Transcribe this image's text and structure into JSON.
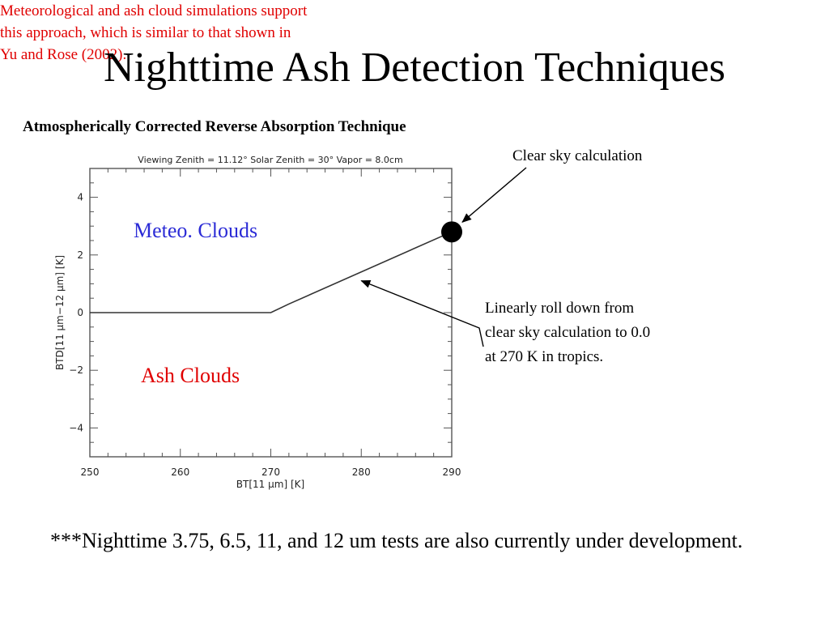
{
  "slide": {
    "title": "Nighttime Ash Detection Techniques",
    "chart_heading": "Atmospherically Corrected Reverse Absorption Technique",
    "clear_sky_label": "Clear sky calculation",
    "roll_down_text": "Linearly roll down from clear sky calculation to 0.0 at 270 K in tropics.",
    "sim_note": "Meteorological and ash cloud simulations support this approach, which is similar to that shown in Yu and Rose (2002).",
    "footer_note": "***Nighttime 3.75, 6.5, 11, and 12 um tests are also currently under development.",
    "colors": {
      "meteo_label": "#2b2bd6",
      "ash_label": "#e00000",
      "sim_note": "#e00000"
    }
  },
  "chart_data": {
    "type": "line",
    "title": "Viewing Zenith = 11.12°   Solar Zenith = 30°   Vapor =   8.0cm",
    "xlabel": "BT[11 μm] [K]",
    "ylabel": "BTD[11 μm−12 μm] [K]",
    "xlim": [
      250,
      290
    ],
    "ylim": [
      -5,
      5
    ],
    "xticks": [
      250,
      260,
      270,
      280,
      290
    ],
    "yticks": [
      -4,
      -2,
      0,
      2,
      4
    ],
    "grid": false,
    "series": [
      {
        "x": [
          250,
          270,
          272,
          290
        ],
        "y": [
          0,
          0,
          0.3,
          2.8
        ]
      }
    ],
    "annotations": {
      "upper_region": "Meteo. Clouds",
      "lower_region": "Ash Clouds",
      "clear_sky_point": {
        "x": 290,
        "y": 2.8
      },
      "roll_down_point": {
        "x": 280,
        "y": 1.05
      }
    }
  }
}
